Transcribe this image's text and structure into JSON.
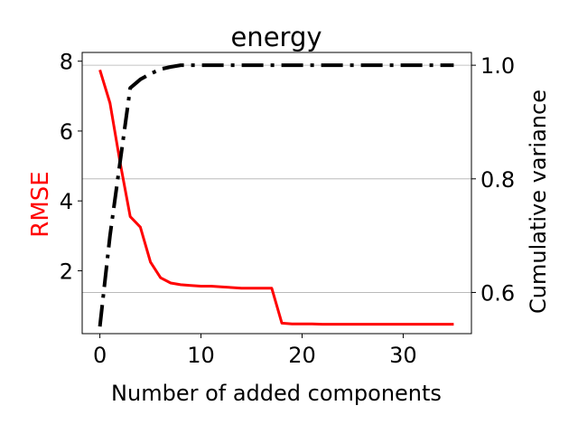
{
  "chart_data": {
    "type": "line",
    "title": "energy",
    "xlabel": "Number of added components",
    "ylabel_left": "RMSE",
    "ylabel_right": "Cumulative variance",
    "xlim": [
      -1.75,
      36.75
    ],
    "ylim_left": [
      0.2,
      8.25
    ],
    "ylim_right": [
      0.5275,
      1.0225
    ],
    "x_ticks": [
      0,
      10,
      20,
      30
    ],
    "x_tick_labels": [
      "0",
      "10",
      "20",
      "30"
    ],
    "left_ticks": [
      2,
      4,
      6,
      8
    ],
    "left_tick_labels": [
      "2",
      "4",
      "6",
      "8"
    ],
    "right_ticks": [
      0.6,
      0.8,
      1.0
    ],
    "right_tick_labels": [
      "0.6",
      "0.8",
      "1.0"
    ],
    "grid": "horizontal lines at right-axis ticks",
    "colors": {
      "rmse": "#ff0000",
      "variance": "#000000",
      "grid": "#b0b0b0",
      "axes": "#000000"
    },
    "series": [
      {
        "name": "RMSE",
        "axis": "left",
        "style": "solid",
        "x": [
          0,
          1,
          2,
          3,
          4,
          5,
          6,
          7,
          8,
          9,
          10,
          11,
          12,
          13,
          14,
          15,
          16,
          17,
          18,
          19,
          20,
          21,
          22,
          23,
          24,
          25,
          26,
          27,
          28,
          29,
          30,
          31,
          32,
          33,
          34,
          35
        ],
        "values": [
          7.75,
          6.8,
          5.1,
          3.55,
          3.25,
          2.25,
          1.8,
          1.65,
          1.6,
          1.58,
          1.56,
          1.56,
          1.54,
          1.52,
          1.5,
          1.5,
          1.5,
          1.5,
          0.5,
          0.48,
          0.48,
          0.48,
          0.47,
          0.47,
          0.47,
          0.47,
          0.47,
          0.47,
          0.47,
          0.47,
          0.47,
          0.47,
          0.47,
          0.47,
          0.47,
          0.47
        ]
      },
      {
        "name": "Cumulative variance",
        "axis": "right",
        "style": "dashdot",
        "x": [
          0,
          1,
          2,
          3,
          4,
          5,
          6,
          7,
          8,
          9,
          10,
          11,
          12,
          13,
          14,
          15,
          16,
          17,
          18,
          19,
          20,
          21,
          22,
          23,
          24,
          25,
          26,
          27,
          28,
          29,
          30,
          31,
          32,
          33,
          34,
          35
        ],
        "values": [
          0.54,
          0.7,
          0.83,
          0.96,
          0.975,
          0.985,
          0.993,
          0.997,
          1.0,
          1.0,
          1.0,
          1.0,
          1.0,
          1.0,
          1.0,
          1.0,
          1.0,
          1.0,
          1.0,
          1.0,
          1.0,
          1.0,
          1.0,
          1.0,
          1.0,
          1.0,
          1.0,
          1.0,
          1.0,
          1.0,
          1.0,
          1.0,
          1.0,
          1.0,
          1.0,
          1.0
        ]
      }
    ]
  }
}
